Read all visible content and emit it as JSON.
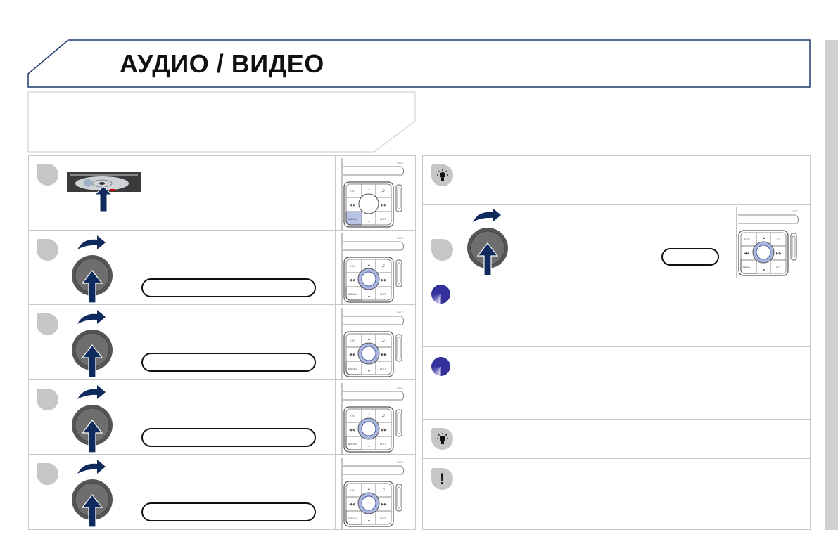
{
  "header": {
    "title": "АУДИО / ВИДЕО",
    "accent_color": "#1f3a6e"
  },
  "control_panel": {
    "disc_label": "DISC",
    "esc_label": "ESC",
    "menu_label": "MENU",
    "list_label": "LIST",
    "highlight_color": "#b8c4e6"
  },
  "icons": {
    "tip": "lightbulb-icon",
    "note": "blue-disc-icon",
    "warning": "exclamation-icon",
    "step_badge": "gray-step-badge",
    "knob": "rotary-knob-icon",
    "arrow": "press-arrow-icon"
  },
  "warning_symbol": "!"
}
